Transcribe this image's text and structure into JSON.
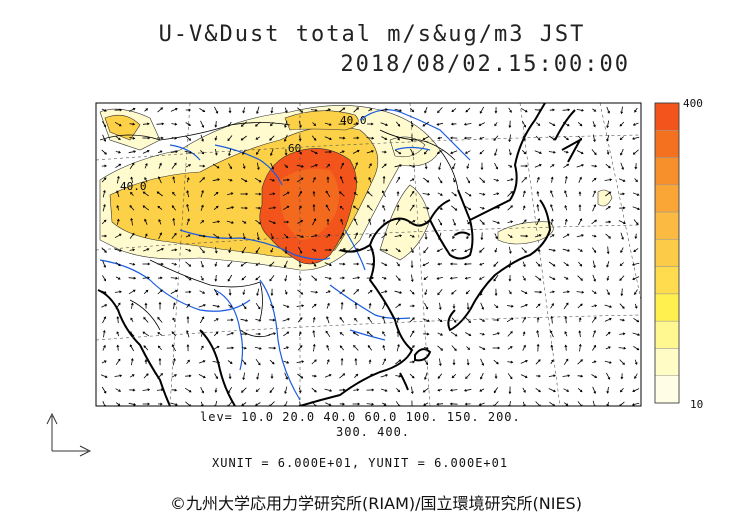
{
  "title": {
    "line1": "U-V&Dust total m/s&ug/m3 JST",
    "line2": "2018/08/02.15:00:00"
  },
  "colorbar": {
    "max_label": "400",
    "min_label": "10",
    "colors": [
      "#f2541b",
      "#f4721f",
      "#f7902a",
      "#f9a637",
      "#fbba42",
      "#fccc48",
      "#fedc4d",
      "#fff04f",
      "#fff890",
      "#fffcc6",
      "#fffde5"
    ]
  },
  "contour_labels": [
    "40.0",
    "60",
    "40.0"
  ],
  "levels": {
    "line1": "lev= 10.0 20.0 40.0 60.0 100. 150. 200.",
    "line2": "300. 400."
  },
  "units": "XUNIT = 6.000E+01, YUNIT = 6.000E+01",
  "credit": "©九州大学応用力学研究所(RIAM)/国立環境研究所(NIES)",
  "colors": {
    "high": "#f2541b",
    "mid": "#fcd047",
    "low": "#fffbcf",
    "river": "#1a5ce0",
    "coast": "#000000"
  }
}
